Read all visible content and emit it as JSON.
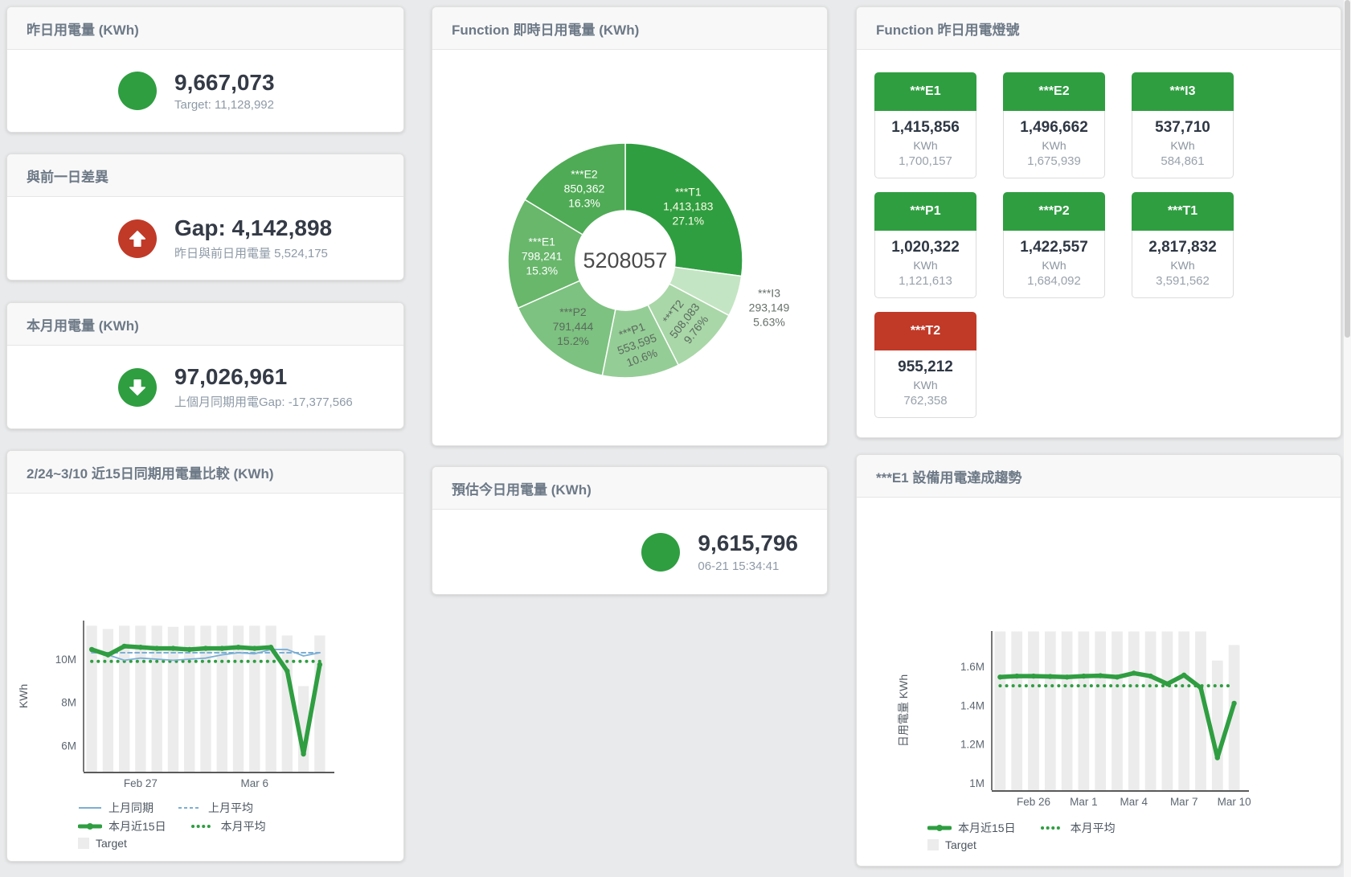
{
  "colors": {
    "green": "#2f9e41",
    "red": "#c13a28",
    "blue": "#7bafd4",
    "target_bar": "#ececec",
    "donut_palette": [
      "#2f9e41",
      "#c4e5c3",
      "#a9d7a8",
      "#95cd96",
      "#7dc280",
      "#68b76b",
      "#4fab55"
    ],
    "donut_label_colors": [
      "#fffde7",
      "#66706a",
      "#5b6a5e",
      "#5b6a5e",
      "#5b6a5e",
      "#ffffff",
      "#ffffff"
    ]
  },
  "cards": {
    "yesterday": {
      "title": "昨日用電量 (KWh)",
      "value": "9,667,073",
      "subtext": "Target: 11,128,992"
    },
    "day_gap": {
      "title": "與前一日差異",
      "value": "Gap: 4,142,898",
      "subtext": "昨日與前日用電量 5,524,175"
    },
    "month": {
      "title": "本月用電量 (KWh)",
      "value": "97,026,961",
      "subtext": "上個月同期用電Gap: -17,377,566"
    },
    "estimate": {
      "title": "預估今日用電量 (KWh)",
      "value": "9,615,796",
      "subtext": "06-21 15:34:41"
    },
    "lights": {
      "title": "Function 昨日用電燈號",
      "unit": "KWh",
      "tiles": [
        {
          "name": "***E1",
          "value": "1,415,856",
          "target": "1,700,157",
          "status_color": "#2f9e41"
        },
        {
          "name": "***E2",
          "value": "1,496,662",
          "target": "1,675,939",
          "status_color": "#2f9e41"
        },
        {
          "name": "***I3",
          "value": "537,710",
          "target": "584,861",
          "status_color": "#2f9e41"
        },
        {
          "name": "***P1",
          "value": "1,020,322",
          "target": "1,121,613",
          "status_color": "#2f9e41"
        },
        {
          "name": "***P2",
          "value": "1,422,557",
          "target": "1,684,092",
          "status_color": "#2f9e41"
        },
        {
          "name": "***T1",
          "value": "2,817,832",
          "target": "3,591,562",
          "status_color": "#2f9e41"
        },
        {
          "name": "***T2",
          "value": "955,212",
          "target": "762,358",
          "status_color": "#c13a28"
        }
      ]
    }
  },
  "chart_data": [
    {
      "type": "pie",
      "title": "Function 即時日用電量 (KWh)",
      "center_label": "5208057",
      "unit": "KWh",
      "series": [
        {
          "name": "***T1",
          "value": 1413183,
          "display": "1,413,183",
          "percent": "27.1%"
        },
        {
          "name": "***I3",
          "value": 293149,
          "display": "293,149",
          "percent": "5.63%"
        },
        {
          "name": "***T2",
          "value": 508083,
          "display": "508,083",
          "percent": "9.76%"
        },
        {
          "name": "***P1",
          "value": 553595,
          "display": "553,595",
          "percent": "10.6%"
        },
        {
          "name": "***P2",
          "value": 791444,
          "display": "791,444",
          "percent": "15.2%"
        },
        {
          "name": "***E1",
          "value": 798241,
          "display": "798,241",
          "percent": "15.3%"
        },
        {
          "name": "***E2",
          "value": 850362,
          "display": "850,362",
          "percent": "16.3%"
        }
      ]
    },
    {
      "type": "line",
      "title": "2/24~3/10 近15日同期用電量比較 (KWh)",
      "ylabel": "KWh",
      "values_unit": "millions of KWh",
      "ylim": [
        4.78,
        11.79
      ],
      "yticks": [
        {
          "v": 6,
          "label": "6M"
        },
        {
          "v": 8,
          "label": "8M"
        },
        {
          "v": 10,
          "label": "10M"
        }
      ],
      "categories": [
        "2/24",
        "2/25",
        "2/26",
        "2/27",
        "2/28",
        "3/1",
        "3/2",
        "3/3",
        "3/4",
        "3/5",
        "3/6",
        "3/7",
        "3/8",
        "3/9",
        "3/10"
      ],
      "x_tick_labels": [
        {
          "index": 3,
          "label": "Feb 27"
        },
        {
          "index": 10,
          "label": "Mar 6"
        }
      ],
      "series": [
        {
          "name": "Target",
          "type": "bar",
          "color_key": "target_bar",
          "values": [
            11.55,
            11.4,
            11.55,
            11.55,
            11.55,
            11.5,
            11.55,
            11.55,
            11.55,
            11.55,
            11.55,
            11.55,
            11.1,
            8.75,
            11.1
          ]
        },
        {
          "name": "上月平均",
          "type": "line",
          "style": "dashed",
          "color_key": "blue",
          "constant": 10.3
        },
        {
          "name": "本月平均",
          "type": "line",
          "style": "dotted",
          "color_key": "green",
          "constant": 9.9
        },
        {
          "name": "上月同期",
          "type": "line",
          "style": "solid",
          "color_key": "blue",
          "values": [
            10.45,
            10.2,
            9.95,
            10.05,
            10.0,
            9.95,
            10.0,
            10.05,
            10.2,
            10.3,
            10.25,
            10.45,
            10.45,
            10.15,
            10.3
          ]
        },
        {
          "name": "本月近15日",
          "type": "line",
          "style": "thick",
          "color_key": "green",
          "values": [
            10.45,
            10.2,
            10.6,
            10.55,
            10.5,
            10.5,
            10.45,
            10.5,
            10.5,
            10.55,
            10.5,
            10.55,
            9.45,
            5.6,
            9.75
          ]
        }
      ],
      "legend": [
        "上月同期",
        "上月平均",
        "本月近15日",
        "本月平均",
        "Target"
      ]
    },
    {
      "type": "line",
      "title": "***E1 設備用電達成趨勢",
      "ylabel": "日用電量 KWh",
      "values_unit": "millions of KWh",
      "ylim": [
        0.963,
        1.782
      ],
      "yticks": [
        {
          "v": 1,
          "label": "1M"
        },
        {
          "v": 1.2,
          "label": "1.2M"
        },
        {
          "v": 1.4,
          "label": "1.4M"
        },
        {
          "v": 1.6,
          "label": "1.6M"
        }
      ],
      "categories": [
        "2/24",
        "2/25",
        "2/26",
        "2/27",
        "2/28",
        "3/1",
        "3/2",
        "3/3",
        "3/4",
        "3/5",
        "3/6",
        "3/7",
        "3/8",
        "3/9",
        "3/10"
      ],
      "x_tick_labels": [
        {
          "index": 2,
          "label": "Feb 26"
        },
        {
          "index": 5,
          "label": "Mar 1"
        },
        {
          "index": 8,
          "label": "Mar 4"
        },
        {
          "index": 11,
          "label": "Mar 7"
        },
        {
          "index": 14,
          "label": "Mar 10"
        }
      ],
      "series": [
        {
          "name": "Target",
          "type": "bar",
          "color_key": "target_bar",
          "values": [
            1.78,
            1.78,
            1.78,
            1.78,
            1.78,
            1.78,
            1.78,
            1.78,
            1.78,
            1.78,
            1.78,
            1.78,
            1.78,
            1.63,
            1.71
          ]
        },
        {
          "name": "本月平均",
          "type": "line",
          "style": "dotted",
          "color_key": "green",
          "constant": 1.5
        },
        {
          "name": "本月近15日",
          "type": "line",
          "style": "thick",
          "color_key": "green",
          "values": [
            1.545,
            1.55,
            1.55,
            1.548,
            1.545,
            1.55,
            1.552,
            1.545,
            1.565,
            1.55,
            1.51,
            1.555,
            1.49,
            1.13,
            1.41
          ]
        }
      ],
      "legend": [
        "本月近15日",
        "本月平均",
        "Target"
      ]
    }
  ]
}
